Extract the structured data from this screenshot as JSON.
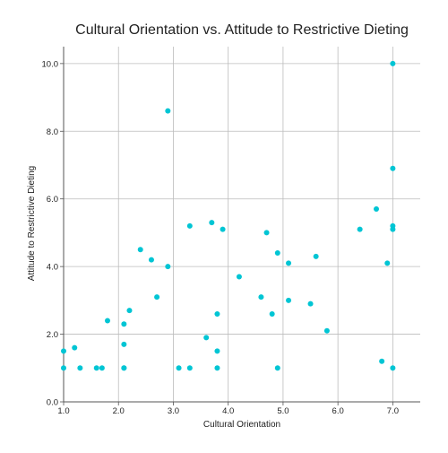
{
  "colors": {
    "point": "#00c5d4",
    "grid": "#bcbcbc",
    "axis": "#555555",
    "background": "#ffffff"
  },
  "chart_data": {
    "type": "scatter",
    "title": "Cultural Orientation vs. Attitude to Restrictive Dieting",
    "xlabel": "Cultural Orientation",
    "ylabel": "Attitude to Restrictive Dieting",
    "xlim": [
      1.0,
      7.5
    ],
    "ylim": [
      0.0,
      10.5
    ],
    "xticks": [
      1.0,
      2.0,
      3.0,
      4.0,
      5.0,
      6.0,
      7.0
    ],
    "yticks": [
      0.0,
      2.0,
      4.0,
      6.0,
      8.0,
      10.0
    ],
    "xtick_labels": [
      "1.0",
      "2.0",
      "3.0",
      "4.0",
      "5.0",
      "6.0",
      "7.0"
    ],
    "ytick_labels": [
      "0.0",
      "2.0",
      "4.0",
      "6.0",
      "8.0",
      "10.0"
    ],
    "grid": true,
    "points": [
      {
        "x": 1.0,
        "y": 1.5
      },
      {
        "x": 1.0,
        "y": 1.0
      },
      {
        "x": 1.2,
        "y": 1.6
      },
      {
        "x": 1.3,
        "y": 1.0
      },
      {
        "x": 1.6,
        "y": 1.0
      },
      {
        "x": 1.7,
        "y": 1.0
      },
      {
        "x": 1.8,
        "y": 2.4
      },
      {
        "x": 2.1,
        "y": 1.0
      },
      {
        "x": 2.1,
        "y": 1.0
      },
      {
        "x": 2.1,
        "y": 1.7
      },
      {
        "x": 2.1,
        "y": 2.3
      },
      {
        "x": 2.2,
        "y": 2.7
      },
      {
        "x": 2.4,
        "y": 4.5
      },
      {
        "x": 2.6,
        "y": 4.2
      },
      {
        "x": 2.7,
        "y": 3.1
      },
      {
        "x": 2.9,
        "y": 4.0
      },
      {
        "x": 2.9,
        "y": 8.6
      },
      {
        "x": 3.1,
        "y": 1.0
      },
      {
        "x": 3.3,
        "y": 1.0
      },
      {
        "x": 3.3,
        "y": 5.2
      },
      {
        "x": 3.6,
        "y": 1.9
      },
      {
        "x": 3.7,
        "y": 5.3
      },
      {
        "x": 3.8,
        "y": 2.6
      },
      {
        "x": 3.8,
        "y": 1.5
      },
      {
        "x": 3.8,
        "y": 1.0
      },
      {
        "x": 3.9,
        "y": 5.1
      },
      {
        "x": 4.2,
        "y": 3.7
      },
      {
        "x": 4.6,
        "y": 3.1
      },
      {
        "x": 4.7,
        "y": 5.0
      },
      {
        "x": 4.8,
        "y": 2.6
      },
      {
        "x": 4.9,
        "y": 4.4
      },
      {
        "x": 4.9,
        "y": 1.0
      },
      {
        "x": 5.1,
        "y": 4.1
      },
      {
        "x": 5.1,
        "y": 3.0
      },
      {
        "x": 5.5,
        "y": 2.9
      },
      {
        "x": 5.6,
        "y": 4.3
      },
      {
        "x": 5.8,
        "y": 2.1
      },
      {
        "x": 6.4,
        "y": 5.1
      },
      {
        "x": 6.7,
        "y": 5.7
      },
      {
        "x": 6.8,
        "y": 1.2
      },
      {
        "x": 6.9,
        "y": 4.1
      },
      {
        "x": 7.0,
        "y": 10.0
      },
      {
        "x": 7.0,
        "y": 6.9
      },
      {
        "x": 7.0,
        "y": 5.2
      },
      {
        "x": 7.0,
        "y": 5.1
      },
      {
        "x": 7.0,
        "y": 1.0
      }
    ]
  }
}
